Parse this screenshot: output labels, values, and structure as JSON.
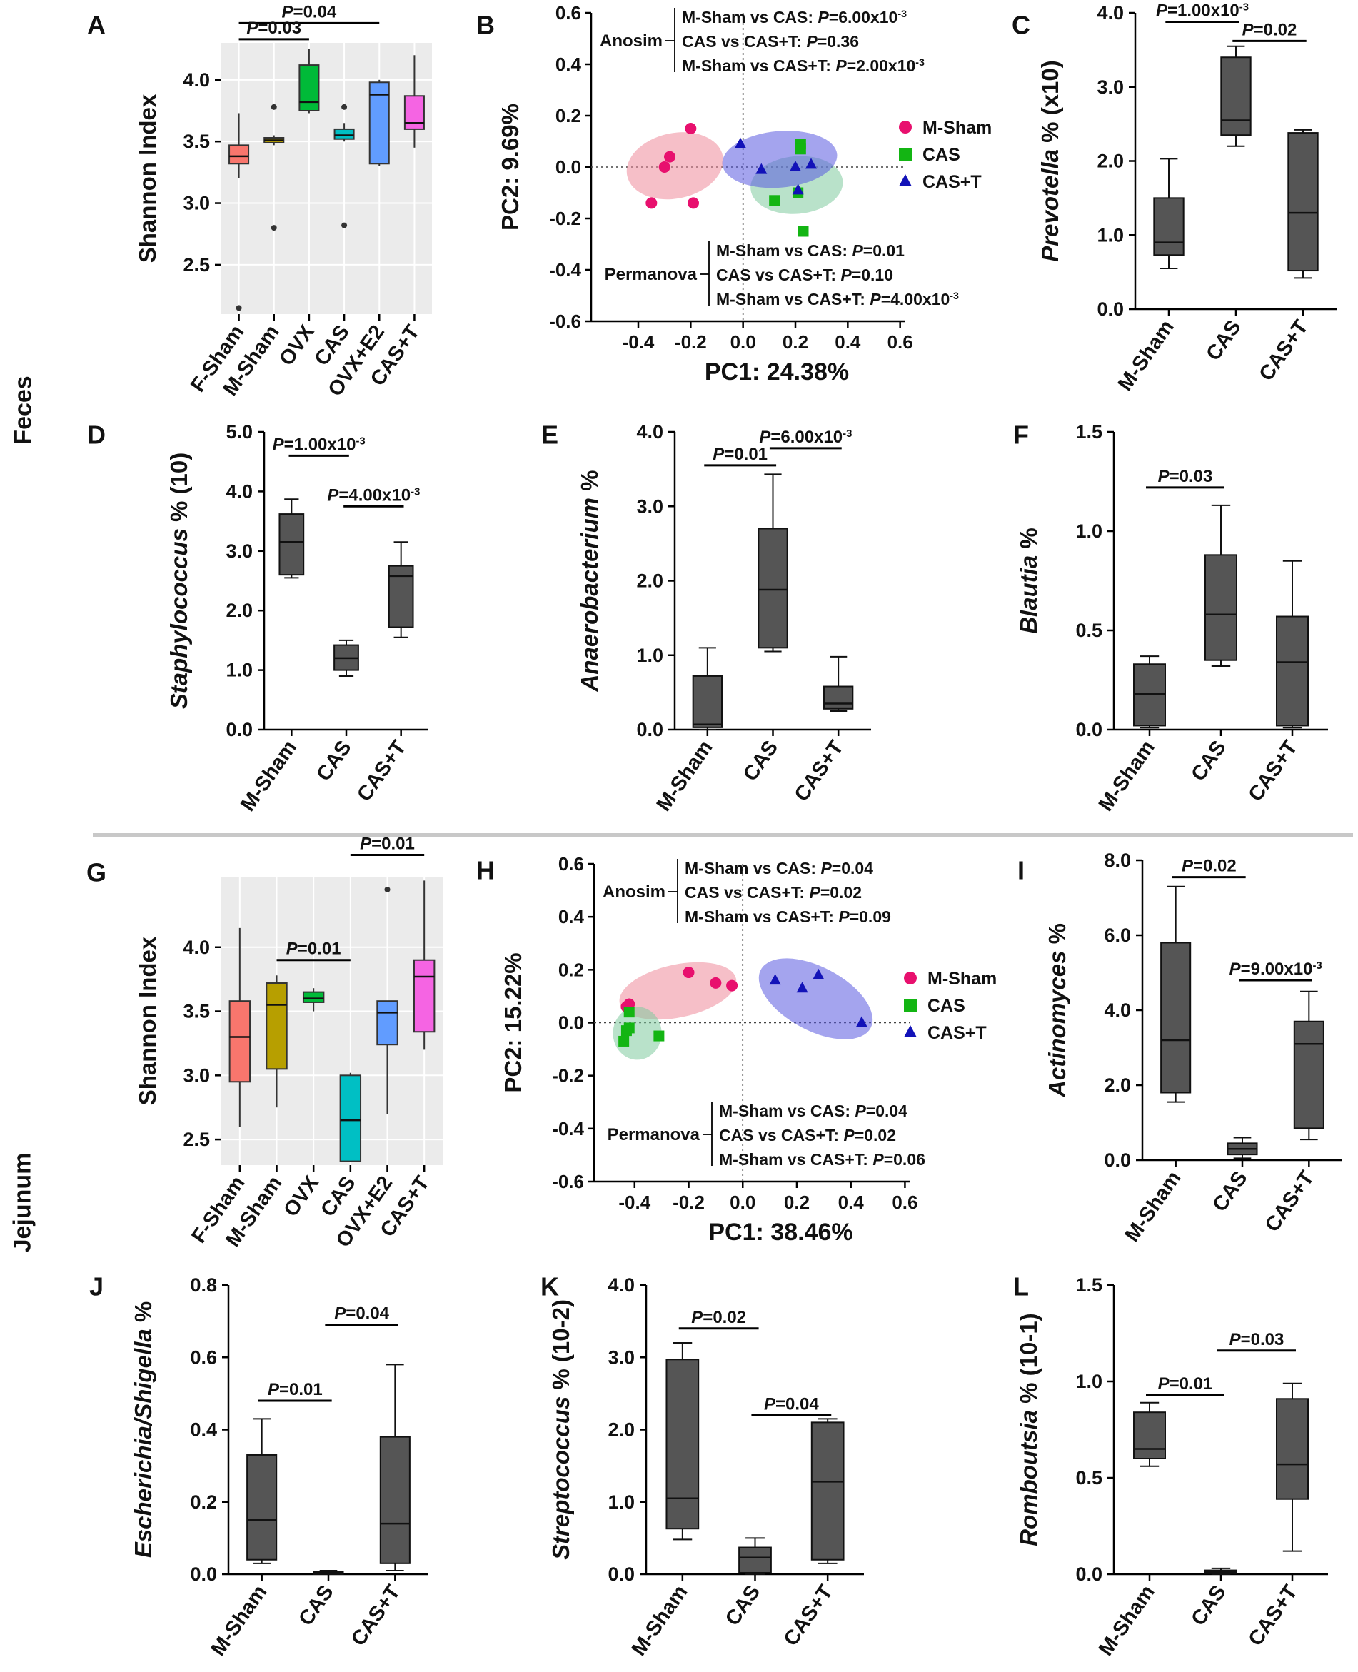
{
  "figure": {
    "section_feces": "Feces",
    "section_jejunum": "Jejunum",
    "colors": {
      "box_gray": "#555555",
      "ggplot_bg": "#EBEBEB",
      "sham_pink": "#E8106E",
      "cas_green": "#13B513",
      "cast_blue": "#1212B8",
      "divider": "#C8C8C8"
    }
  },
  "chart_data": [
    {
      "id": "A",
      "panel_letter": "A",
      "type": "box",
      "style": "ggplot",
      "ylabel": "Shannon Index",
      "ylim": [
        2.1,
        4.3
      ],
      "yticks": [
        2.5,
        3.0,
        3.5,
        4.0
      ],
      "ytick_labels": [
        "2.5",
        "3.0",
        "3.5",
        "4.0"
      ],
      "categories": [
        "F-Sham",
        "M-Sham",
        "OVX",
        "CAS",
        "OVX+E2",
        "CAS+T"
      ],
      "box_colors": [
        "#F8766D",
        "#B79F00",
        "#00BA38",
        "#00BFC4",
        "#619CFF",
        "#F564E3"
      ],
      "boxes": [
        {
          "min": 3.2,
          "q1": 3.32,
          "median": 3.38,
          "q3": 3.47,
          "max": 3.73,
          "outliers": [
            2.15
          ]
        },
        {
          "min": 3.47,
          "q1": 3.49,
          "median": 3.51,
          "q3": 3.53,
          "max": 3.55,
          "outliers": [
            3.78,
            2.8
          ]
        },
        {
          "min": 3.73,
          "q1": 3.75,
          "median": 3.82,
          "q3": 4.12,
          "max": 4.25,
          "outliers": []
        },
        {
          "min": 3.5,
          "q1": 3.52,
          "median": 3.55,
          "q3": 3.6,
          "max": 3.65,
          "outliers": [
            3.78,
            2.82
          ]
        },
        {
          "min": 3.3,
          "q1": 3.32,
          "median": 3.88,
          "q3": 3.98,
          "max": 4.0,
          "outliers": []
        },
        {
          "min": 3.45,
          "q1": 3.6,
          "median": 3.65,
          "q3": 3.87,
          "max": 4.2,
          "outliers": []
        }
      ],
      "annotations": [
        {
          "label": "P=0.04",
          "from": 0,
          "to": 4,
          "y": 4.46
        },
        {
          "label": "P=0.03",
          "from": 0,
          "to": 2,
          "y": 4.33
        }
      ]
    },
    {
      "id": "B",
      "panel_letter": "B",
      "type": "scatter",
      "xlabel": "PC1: 24.38%",
      "ylabel": "PC2: 9.69%",
      "xlim": [
        -0.58,
        0.62
      ],
      "ylim": [
        -0.6,
        0.6
      ],
      "xticks": [
        -0.4,
        -0.2,
        0.0,
        0.2,
        0.4,
        0.6
      ],
      "xtick_labels": [
        "-0.4",
        "-0.2",
        "0.0",
        "0.2",
        "0.4",
        "0.6"
      ],
      "yticks": [
        -0.6,
        -0.4,
        -0.2,
        0.0,
        0.2,
        0.4,
        0.6
      ],
      "ytick_labels": [
        "-0.6",
        "-0.4",
        "-0.2",
        "0.0",
        "0.2",
        "0.4",
        "0.6"
      ],
      "series": [
        {
          "name": "M-Sham",
          "marker": "circle",
          "color": "#E8106E",
          "fill": "#EE8A9A",
          "x": [
            -0.28,
            -0.3,
            -0.2,
            -0.35,
            -0.19
          ],
          "y": [
            0.04,
            0.0,
            0.15,
            -0.14,
            -0.14
          ],
          "ellipse": {
            "cx": -0.26,
            "cy": 0.005,
            "rx": 0.125,
            "ry": 0.19,
            "angle": 78
          }
        },
        {
          "name": "CAS",
          "marker": "square",
          "color": "#13B513",
          "fill": "#7FCB9F",
          "x": [
            0.22,
            0.22,
            0.21,
            0.12,
            0.23
          ],
          "y": [
            0.09,
            0.07,
            -0.1,
            -0.13,
            -0.25
          ],
          "ellipse": {
            "cx": 0.205,
            "cy": -0.07,
            "rx": 0.11,
            "ry": 0.18,
            "angle": 85
          }
        },
        {
          "name": "CAS+T",
          "marker": "triangle",
          "color": "#1212B8",
          "fill": "#5A5AE0",
          "x": [
            -0.01,
            0.07,
            0.2,
            0.21,
            0.26
          ],
          "y": [
            0.09,
            -0.01,
            0.0,
            -0.09,
            0.01
          ],
          "ellipse": {
            "cx": 0.14,
            "cy": 0.03,
            "rx": 0.22,
            "ry": 0.11,
            "angle": -5
          }
        }
      ],
      "stats_top": {
        "label": "Anosim",
        "lines": [
          "M-Sham vs CAS: P=6.00x10-3",
          "CAS vs CAS+T: P=0.36",
          "M-Sham vs CAS+T: P=2.00x10-3"
        ]
      },
      "stats_bottom": {
        "label": "Permanova",
        "lines": [
          "M-Sham vs CAS: P=0.01",
          "CAS vs CAS+T: P=0.10",
          "M-Sham vs CAS+T: P=4.00x10-3"
        ]
      }
    },
    {
      "id": "C",
      "panel_letter": "C",
      "type": "box",
      "ylabel": "Prevotella % (x10)",
      "ylim": [
        0,
        4.0
      ],
      "yticks": [
        0,
        1,
        2,
        3,
        4
      ],
      "ytick_labels": [
        "0.0",
        "1.0",
        "2.0",
        "3.0",
        "4.0"
      ],
      "categories": [
        "M-Sham",
        "CAS",
        "CAS+T"
      ],
      "boxes": [
        {
          "min": 0.55,
          "q1": 0.73,
          "median": 0.9,
          "q3": 1.5,
          "max": 2.03
        },
        {
          "min": 2.2,
          "q1": 2.35,
          "median": 2.55,
          "q3": 3.4,
          "max": 3.55
        },
        {
          "min": 0.42,
          "q1": 0.52,
          "median": 1.3,
          "q3": 2.38,
          "max": 2.42
        }
      ],
      "annotations": [
        {
          "label": "P=1.00x10-3",
          "from": 0,
          "to": 1,
          "y": 3.88
        },
        {
          "label": "P=0.02",
          "from": 1,
          "to": 2,
          "y": 3.62
        }
      ]
    },
    {
      "id": "D",
      "panel_letter": "D",
      "type": "box",
      "ylabel": "Staphylococcus % (10)",
      "ylim": [
        0,
        5.0
      ],
      "yticks": [
        0,
        1,
        2,
        3,
        4,
        5
      ],
      "ytick_labels": [
        "0.0",
        "1.0",
        "2.0",
        "3.0",
        "4.0",
        "5.0"
      ],
      "categories": [
        "M-Sham",
        "CAS",
        "CAS+T"
      ],
      "boxes": [
        {
          "min": 2.55,
          "q1": 2.6,
          "median": 3.15,
          "q3": 3.62,
          "max": 3.87
        },
        {
          "min": 0.9,
          "q1": 1.0,
          "median": 1.2,
          "q3": 1.42,
          "max": 1.5
        },
        {
          "min": 1.55,
          "q1": 1.72,
          "median": 2.58,
          "q3": 2.75,
          "max": 3.15
        }
      ],
      "annotations": [
        {
          "label": "P=1.00x10-3",
          "from": 0,
          "to": 1,
          "y": 4.6
        },
        {
          "label": "P=4.00x10-3",
          "from": 1,
          "to": 2,
          "y": 3.75
        }
      ]
    },
    {
      "id": "E",
      "panel_letter": "E",
      "type": "box",
      "ylabel": "Anaerobacterium %",
      "ylim": [
        0,
        4.0
      ],
      "yticks": [
        0,
        1,
        2,
        3,
        4
      ],
      "ytick_labels": [
        "0.0",
        "1.0",
        "2.0",
        "3.0",
        "4.0"
      ],
      "categories": [
        "M-Sham",
        "CAS",
        "CAS+T"
      ],
      "boxes": [
        {
          "min": 0.0,
          "q1": 0.03,
          "median": 0.07,
          "q3": 0.72,
          "max": 1.1
        },
        {
          "min": 1.05,
          "q1": 1.1,
          "median": 1.88,
          "q3": 2.7,
          "max": 3.43
        },
        {
          "min": 0.25,
          "q1": 0.28,
          "median": 0.35,
          "q3": 0.58,
          "max": 0.98
        }
      ],
      "annotations": [
        {
          "label": "P=0.01",
          "from": 0,
          "to": 1,
          "y": 3.55
        },
        {
          "label": "P=6.00x10-3",
          "from": 1,
          "to": 2,
          "y": 3.78
        }
      ]
    },
    {
      "id": "F",
      "panel_letter": "F",
      "type": "box",
      "ylabel": "Blautia %",
      "ylim": [
        0,
        1.5
      ],
      "yticks": [
        0,
        0.5,
        1.0,
        1.5
      ],
      "ytick_labels": [
        "0.0",
        "0.5",
        "1.0",
        "1.5"
      ],
      "categories": [
        "M-Sham",
        "CAS",
        "CAS+T"
      ],
      "boxes": [
        {
          "min": 0.01,
          "q1": 0.02,
          "median": 0.18,
          "q3": 0.33,
          "max": 0.37
        },
        {
          "min": 0.32,
          "q1": 0.35,
          "median": 0.58,
          "q3": 0.88,
          "max": 1.13
        },
        {
          "min": 0.01,
          "q1": 0.02,
          "median": 0.34,
          "q3": 0.57,
          "max": 0.85
        }
      ],
      "annotations": [
        {
          "label": "P=0.03",
          "from": 0,
          "to": 1,
          "y": 1.22
        }
      ]
    },
    {
      "id": "G",
      "panel_letter": "G",
      "type": "box",
      "style": "ggplot",
      "ylabel": "Shannon Index",
      "ylim": [
        2.3,
        4.55
      ],
      "yticks": [
        2.5,
        3.0,
        3.5,
        4.0
      ],
      "ytick_labels": [
        "2.5",
        "3.0",
        "3.5",
        "4.0"
      ],
      "categories": [
        "F-Sham",
        "M-Sham",
        "OVX",
        "CAS",
        "OVX+E2",
        "CAS+T"
      ],
      "box_colors": [
        "#F8766D",
        "#B79F00",
        "#00BA38",
        "#00BFC4",
        "#619CFF",
        "#F564E3"
      ],
      "boxes": [
        {
          "min": 2.6,
          "q1": 2.95,
          "median": 3.3,
          "q3": 3.58,
          "max": 4.15,
          "outliers": []
        },
        {
          "min": 2.75,
          "q1": 3.05,
          "median": 3.55,
          "q3": 3.72,
          "max": 3.78,
          "outliers": []
        },
        {
          "min": 3.5,
          "q1": 3.57,
          "median": 3.6,
          "q3": 3.65,
          "max": 3.68,
          "outliers": []
        },
        {
          "min": 2.33,
          "q1": 2.33,
          "median": 2.65,
          "q3": 3.0,
          "max": 3.02,
          "outliers": []
        },
        {
          "min": 2.7,
          "q1": 3.24,
          "median": 3.49,
          "q3": 3.58,
          "max": 3.58,
          "outliers": [
            4.45
          ]
        },
        {
          "min": 3.2,
          "q1": 3.34,
          "median": 3.77,
          "q3": 3.9,
          "max": 4.52,
          "outliers": []
        }
      ],
      "annotations": [
        {
          "label": "P=0.01",
          "from": 1,
          "to": 3,
          "y": 3.9
        },
        {
          "label": "P=0.01",
          "from": 3,
          "to": 5,
          "y": 4.72
        }
      ]
    },
    {
      "id": "H",
      "panel_letter": "H",
      "type": "scatter",
      "xlabel": "PC1: 38.46%",
      "ylabel": "PC2: 15.22%",
      "xlim": [
        -0.55,
        0.62
      ],
      "ylim": [
        -0.6,
        0.6
      ],
      "xticks": [
        -0.4,
        -0.2,
        0.0,
        0.2,
        0.4,
        0.6
      ],
      "xtick_labels": [
        "-0.4",
        "-0.2",
        "0.0",
        "0.2",
        "0.4",
        "0.6"
      ],
      "yticks": [
        -0.6,
        -0.4,
        -0.2,
        0.0,
        0.2,
        0.4,
        0.6
      ],
      "ytick_labels": [
        "-0.6",
        "-0.4",
        "-0.2",
        "0.0",
        "0.2",
        "0.4",
        "0.6"
      ],
      "series": [
        {
          "name": "M-Sham",
          "marker": "circle",
          "color": "#E8106E",
          "fill": "#EE8A9A",
          "x": [
            -0.42,
            -0.2,
            -0.1,
            -0.04,
            -0.43
          ],
          "y": [
            0.07,
            0.19,
            0.15,
            0.14,
            0.06
          ],
          "ellipse": {
            "cx": -0.24,
            "cy": 0.12,
            "rx": 0.22,
            "ry": 0.1,
            "angle": -12
          }
        },
        {
          "name": "CAS",
          "marker": "square",
          "color": "#13B513",
          "fill": "#7FCB9F",
          "x": [
            -0.42,
            -0.43,
            -0.44,
            -0.31,
            -0.42
          ],
          "y": [
            0.04,
            -0.03,
            -0.07,
            -0.05,
            -0.02
          ],
          "ellipse": {
            "cx": -0.39,
            "cy": -0.04,
            "rx": 0.09,
            "ry": 0.1,
            "angle": 0
          }
        },
        {
          "name": "CAS+T",
          "marker": "triangle",
          "color": "#1212B8",
          "fill": "#5A5AE0",
          "x": [
            0.12,
            0.22,
            0.28,
            0.44
          ],
          "y": [
            0.16,
            0.13,
            0.18,
            0.0
          ],
          "ellipse": {
            "cx": 0.27,
            "cy": 0.09,
            "rx": 0.23,
            "ry": 0.12,
            "angle": 28
          }
        }
      ],
      "stats_top": {
        "label": "Anosim",
        "lines": [
          "M-Sham vs CAS: P=0.04",
          "CAS vs CAS+T: P=0.02",
          "M-Sham vs CAS+T: P=0.09"
        ]
      },
      "stats_bottom": {
        "label": "Permanova",
        "lines": [
          "M-Sham vs CAS: P=0.04",
          "CAS vs CAS+T: P=0.02",
          "M-Sham vs CAS+T: P=0.06"
        ]
      }
    },
    {
      "id": "I",
      "panel_letter": "I",
      "type": "box",
      "ylabel": "Actinomyces %",
      "ylim": [
        0,
        8.0
      ],
      "yticks": [
        0,
        2,
        4,
        6,
        8
      ],
      "ytick_labels": [
        "0.0",
        "2.0",
        "4.0",
        "6.0",
        "8.0"
      ],
      "categories": [
        "M-Sham",
        "CAS",
        "CAS+T"
      ],
      "boxes": [
        {
          "min": 1.55,
          "q1": 1.8,
          "median": 3.2,
          "q3": 5.8,
          "max": 7.3
        },
        {
          "min": 0.05,
          "q1": 0.15,
          "median": 0.3,
          "q3": 0.45,
          "max": 0.6
        },
        {
          "min": 0.55,
          "q1": 0.85,
          "median": 3.1,
          "q3": 3.7,
          "max": 4.5
        }
      ],
      "annotations": [
        {
          "label": "P=0.02",
          "from": 0,
          "to": 1,
          "y": 7.55
        },
        {
          "label": "P=9.00x10-3",
          "from": 1,
          "to": 2,
          "y": 4.8
        }
      ]
    },
    {
      "id": "J",
      "panel_letter": "J",
      "type": "box",
      "ylabel": "Escherichia/Shigella %",
      "ylim": [
        0,
        0.8
      ],
      "yticks": [
        0,
        0.2,
        0.4,
        0.6,
        0.8
      ],
      "ytick_labels": [
        "0.0",
        "0.2",
        "0.4",
        "0.6",
        "0.8"
      ],
      "categories": [
        "M-Sham",
        "CAS",
        "CAS+T"
      ],
      "boxes": [
        {
          "min": 0.03,
          "q1": 0.04,
          "median": 0.15,
          "q3": 0.33,
          "max": 0.43
        },
        {
          "min": 0.0,
          "q1": 0.0,
          "median": 0.003,
          "q3": 0.006,
          "max": 0.01
        },
        {
          "min": 0.01,
          "q1": 0.03,
          "median": 0.14,
          "q3": 0.38,
          "max": 0.58
        }
      ],
      "annotations": [
        {
          "label": "P=0.01",
          "from": 0,
          "to": 1,
          "y": 0.48
        },
        {
          "label": "P=0.04",
          "from": 1,
          "to": 2,
          "y": 0.69
        }
      ]
    },
    {
      "id": "K",
      "panel_letter": "K",
      "type": "box",
      "ylabel": "Streptococcus % (10-2)",
      "ylim": [
        0,
        4.0
      ],
      "yticks": [
        0,
        1,
        2,
        3,
        4
      ],
      "ytick_labels": [
        "0.0",
        "1.0",
        "2.0",
        "3.0",
        "4.0"
      ],
      "categories": [
        "M-Sham",
        "CAS",
        "CAS+T"
      ],
      "boxes": [
        {
          "min": 0.48,
          "q1": 0.63,
          "median": 1.05,
          "q3": 2.97,
          "max": 3.2
        },
        {
          "min": 0.0,
          "q1": 0.02,
          "median": 0.23,
          "q3": 0.37,
          "max": 0.5
        },
        {
          "min": 0.15,
          "q1": 0.2,
          "median": 1.28,
          "q3": 2.1,
          "max": 2.15
        }
      ],
      "annotations": [
        {
          "label": "P=0.02",
          "from": 0,
          "to": 1,
          "y": 3.4
        },
        {
          "label": "P=0.04",
          "from": 1,
          "to": 2,
          "y": 2.2
        }
      ]
    },
    {
      "id": "L",
      "panel_letter": "L",
      "type": "box",
      "ylabel": "Romboutsia % (10-1)",
      "ylim": [
        0,
        1.5
      ],
      "yticks": [
        0,
        0.5,
        1.0,
        1.5
      ],
      "ytick_labels": [
        "0.0",
        "0.5",
        "1.0",
        "1.5"
      ],
      "categories": [
        "M-Sham",
        "CAS",
        "CAS+T"
      ],
      "boxes": [
        {
          "min": 0.56,
          "q1": 0.6,
          "median": 0.65,
          "q3": 0.84,
          "max": 0.89
        },
        {
          "min": 0.0,
          "q1": 0.005,
          "median": 0.01,
          "q3": 0.02,
          "max": 0.03
        },
        {
          "min": 0.12,
          "q1": 0.39,
          "median": 0.57,
          "q3": 0.91,
          "max": 0.99
        }
      ],
      "annotations": [
        {
          "label": "P=0.01",
          "from": 0,
          "to": 1,
          "y": 0.93
        },
        {
          "label": "P=0.03",
          "from": 1,
          "to": 2,
          "y": 1.16
        }
      ]
    }
  ]
}
